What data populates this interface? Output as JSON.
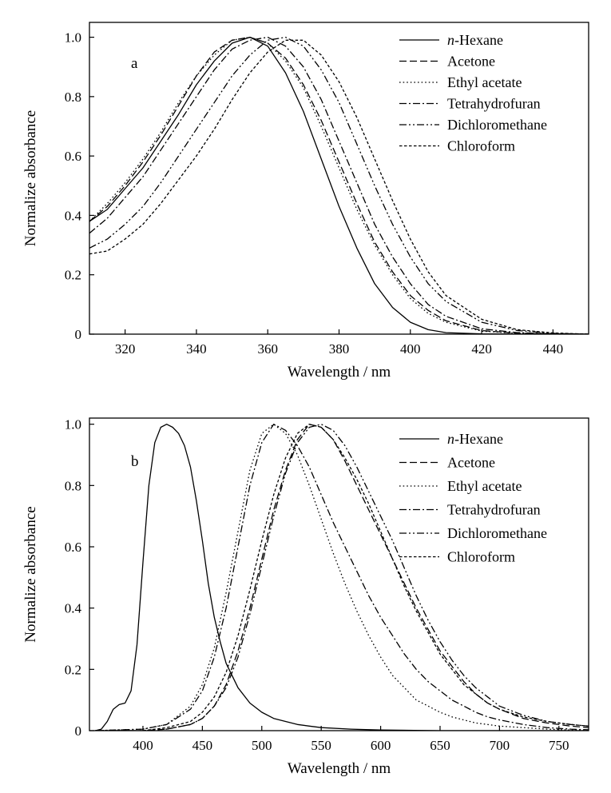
{
  "chart_data": [
    {
      "type": "line",
      "panel_label": "a",
      "xlabel": "Wavelength / nm",
      "ylabel": "Normalize absorbance",
      "xlim": [
        310,
        450
      ],
      "ylim": [
        0,
        1.05
      ],
      "xticks": [
        320,
        340,
        360,
        380,
        400,
        420,
        440
      ],
      "yticks": [
        0,
        0.2,
        0.4,
        0.6,
        0.8,
        1.0
      ],
      "ytick_labels": [
        "0",
        "0.2",
        "0.4",
        "0.6",
        "0.8",
        "1.0"
      ],
      "legend_position": "top-right",
      "series": [
        {
          "name": "n-Hexane",
          "name_italic": "n",
          "name_rest": "-Hexane",
          "dash": "solid",
          "x": [
            310,
            315,
            320,
            325,
            330,
            335,
            340,
            345,
            350,
            355,
            360,
            365,
            370,
            375,
            380,
            385,
            390,
            395,
            400,
            405,
            410,
            420,
            430,
            440,
            450
          ],
          "y": [
            0.38,
            0.42,
            0.49,
            0.56,
            0.65,
            0.74,
            0.84,
            0.92,
            0.98,
            1.0,
            0.97,
            0.88,
            0.75,
            0.59,
            0.43,
            0.29,
            0.17,
            0.09,
            0.04,
            0.015,
            0.005,
            0.001,
            0,
            0,
            0
          ]
        },
        {
          "name": "Acetone",
          "dash": "dashed",
          "x": [
            310,
            315,
            320,
            325,
            330,
            335,
            340,
            345,
            350,
            355,
            360,
            365,
            370,
            375,
            380,
            385,
            390,
            395,
            400,
            405,
            410,
            420,
            430,
            440,
            450
          ],
          "y": [
            0.38,
            0.43,
            0.5,
            0.58,
            0.67,
            0.77,
            0.87,
            0.95,
            0.99,
            1.0,
            0.98,
            0.93,
            0.84,
            0.72,
            0.58,
            0.44,
            0.31,
            0.21,
            0.13,
            0.08,
            0.045,
            0.012,
            0.003,
            0.001,
            0
          ]
        },
        {
          "name": "Ethyl acetate",
          "dash": "dotted",
          "x": [
            310,
            315,
            320,
            325,
            330,
            335,
            340,
            345,
            350,
            355,
            360,
            365,
            370,
            375,
            380,
            385,
            390,
            395,
            400,
            405,
            410,
            420,
            430,
            440,
            450
          ],
          "y": [
            0.38,
            0.44,
            0.51,
            0.59,
            0.68,
            0.78,
            0.87,
            0.94,
            0.99,
            1.0,
            0.98,
            0.92,
            0.83,
            0.7,
            0.56,
            0.42,
            0.3,
            0.2,
            0.12,
            0.07,
            0.04,
            0.01,
            0.003,
            0.001,
            0
          ]
        },
        {
          "name": "Tetrahydrofuran",
          "dash": "dashdot",
          "x": [
            310,
            315,
            320,
            325,
            330,
            335,
            340,
            345,
            350,
            355,
            360,
            365,
            370,
            375,
            380,
            385,
            390,
            395,
            400,
            405,
            410,
            420,
            430,
            440,
            450
          ],
          "y": [
            0.34,
            0.39,
            0.46,
            0.53,
            0.62,
            0.71,
            0.8,
            0.89,
            0.96,
            0.99,
            1.0,
            0.97,
            0.9,
            0.79,
            0.65,
            0.51,
            0.37,
            0.26,
            0.17,
            0.1,
            0.06,
            0.018,
            0.005,
            0.001,
            0
          ]
        },
        {
          "name": "Dichloromethane",
          "dash": "dashdotdot",
          "x": [
            310,
            315,
            320,
            325,
            330,
            335,
            340,
            345,
            350,
            355,
            360,
            365,
            370,
            375,
            380,
            385,
            390,
            395,
            400,
            405,
            410,
            420,
            430,
            440,
            450
          ],
          "y": [
            0.29,
            0.32,
            0.37,
            0.43,
            0.51,
            0.6,
            0.69,
            0.78,
            0.87,
            0.94,
            0.99,
            1.0,
            0.97,
            0.89,
            0.78,
            0.64,
            0.5,
            0.37,
            0.26,
            0.17,
            0.11,
            0.04,
            0.012,
            0.003,
            0
          ]
        },
        {
          "name": "Chloroform",
          "dash": "shortdash",
          "x": [
            310,
            315,
            320,
            325,
            330,
            335,
            340,
            345,
            350,
            355,
            360,
            365,
            370,
            375,
            380,
            385,
            390,
            395,
            400,
            405,
            410,
            420,
            430,
            440,
            450
          ],
          "y": [
            0.27,
            0.28,
            0.32,
            0.37,
            0.44,
            0.52,
            0.6,
            0.69,
            0.79,
            0.88,
            0.95,
            0.99,
            0.99,
            0.94,
            0.85,
            0.73,
            0.59,
            0.45,
            0.32,
            0.21,
            0.13,
            0.05,
            0.015,
            0.004,
            0
          ]
        }
      ]
    },
    {
      "type": "line",
      "panel_label": "b",
      "xlabel": "Wavelength / nm",
      "ylabel": "Normalize absorbance",
      "xlim": [
        355,
        775
      ],
      "ylim": [
        0,
        1.02
      ],
      "xticks": [
        400,
        450,
        500,
        550,
        600,
        650,
        700,
        750
      ],
      "yticks": [
        0,
        0.2,
        0.4,
        0.6,
        0.8,
        1.0
      ],
      "ytick_labels": [
        "0",
        "0.2",
        "0.4",
        "0.6",
        "0.8",
        "1.0"
      ],
      "legend_position": "top-right",
      "series": [
        {
          "name": "n-Hexane",
          "name_italic": "n",
          "name_rest": "-Hexane",
          "dash": "solid",
          "x": [
            360,
            365,
            370,
            375,
            380,
            385,
            390,
            395,
            400,
            405,
            410,
            415,
            420,
            425,
            430,
            435,
            440,
            445,
            450,
            455,
            460,
            465,
            470,
            480,
            490,
            500,
            510,
            520,
            530,
            540,
            550,
            575,
            600,
            650,
            700,
            750,
            775
          ],
          "y": [
            0,
            0.005,
            0.03,
            0.07,
            0.085,
            0.09,
            0.13,
            0.28,
            0.55,
            0.8,
            0.94,
            0.99,
            1.0,
            0.99,
            0.97,
            0.93,
            0.86,
            0.75,
            0.62,
            0.48,
            0.37,
            0.29,
            0.22,
            0.14,
            0.09,
            0.06,
            0.04,
            0.03,
            0.02,
            0.015,
            0.01,
            0.005,
            0.002,
            0,
            0,
            0,
            0
          ]
        },
        {
          "name": "Acetone",
          "dash": "dashed",
          "x": [
            360,
            400,
            420,
            440,
            450,
            460,
            470,
            480,
            490,
            500,
            510,
            520,
            530,
            540,
            550,
            560,
            570,
            580,
            590,
            600,
            610,
            620,
            630,
            640,
            650,
            660,
            670,
            680,
            690,
            700,
            720,
            740,
            760,
            775
          ],
          "y": [
            0,
            0,
            0.005,
            0.02,
            0.04,
            0.08,
            0.15,
            0.26,
            0.4,
            0.56,
            0.72,
            0.85,
            0.95,
            1.0,
            0.99,
            0.95,
            0.88,
            0.8,
            0.72,
            0.64,
            0.56,
            0.48,
            0.4,
            0.33,
            0.26,
            0.21,
            0.16,
            0.12,
            0.09,
            0.07,
            0.04,
            0.025,
            0.015,
            0.01
          ]
        },
        {
          "name": "Ethyl acetate",
          "dash": "dotted",
          "x": [
            360,
            400,
            420,
            440,
            450,
            460,
            470,
            480,
            490,
            500,
            510,
            520,
            530,
            540,
            550,
            560,
            570,
            580,
            590,
            600,
            610,
            620,
            630,
            640,
            650,
            660,
            670,
            680,
            690,
            700,
            720,
            740,
            760,
            775
          ],
          "y": [
            0,
            0.005,
            0.02,
            0.08,
            0.15,
            0.27,
            0.45,
            0.65,
            0.85,
            0.97,
            1.0,
            0.97,
            0.9,
            0.8,
            0.69,
            0.58,
            0.48,
            0.39,
            0.31,
            0.24,
            0.18,
            0.14,
            0.1,
            0.08,
            0.06,
            0.045,
            0.035,
            0.025,
            0.02,
            0.015,
            0.01,
            0.005,
            0.002,
            0
          ]
        },
        {
          "name": "Tetrahydrofuran",
          "dash": "dashdot",
          "x": [
            360,
            400,
            420,
            440,
            450,
            460,
            470,
            480,
            490,
            500,
            510,
            520,
            530,
            540,
            550,
            560,
            570,
            580,
            590,
            600,
            610,
            620,
            630,
            640,
            650,
            660,
            670,
            680,
            690,
            700,
            720,
            740,
            760,
            775
          ],
          "y": [
            0,
            0.005,
            0.02,
            0.07,
            0.13,
            0.24,
            0.4,
            0.6,
            0.8,
            0.94,
            1.0,
            0.98,
            0.93,
            0.86,
            0.77,
            0.68,
            0.6,
            0.52,
            0.44,
            0.37,
            0.31,
            0.25,
            0.2,
            0.16,
            0.13,
            0.1,
            0.08,
            0.06,
            0.045,
            0.035,
            0.02,
            0.01,
            0.005,
            0.003
          ]
        },
        {
          "name": "Dichloromethane",
          "dash": "dashdotdot",
          "x": [
            360,
            400,
            420,
            440,
            450,
            460,
            470,
            480,
            490,
            500,
            510,
            520,
            530,
            540,
            550,
            560,
            570,
            580,
            590,
            600,
            610,
            620,
            630,
            640,
            650,
            660,
            670,
            680,
            690,
            700,
            720,
            740,
            760,
            775
          ],
          "y": [
            0,
            0,
            0.005,
            0.02,
            0.04,
            0.08,
            0.14,
            0.24,
            0.38,
            0.54,
            0.7,
            0.84,
            0.94,
            0.99,
            1.0,
            0.98,
            0.93,
            0.86,
            0.78,
            0.7,
            0.62,
            0.53,
            0.44,
            0.36,
            0.29,
            0.23,
            0.18,
            0.14,
            0.11,
            0.08,
            0.05,
            0.03,
            0.02,
            0.015
          ]
        },
        {
          "name": "Chloroform",
          "dash": "shortdash",
          "x": [
            360,
            400,
            420,
            440,
            450,
            460,
            470,
            480,
            490,
            500,
            510,
            520,
            530,
            540,
            550,
            560,
            570,
            580,
            590,
            600,
            610,
            620,
            630,
            640,
            650,
            660,
            670,
            680,
            690,
            700,
            720,
            740,
            760,
            775
          ],
          "y": [
            0,
            0,
            0.01,
            0.03,
            0.06,
            0.11,
            0.19,
            0.31,
            0.46,
            0.62,
            0.77,
            0.89,
            0.97,
            1.0,
            0.99,
            0.95,
            0.89,
            0.82,
            0.74,
            0.65,
            0.56,
            0.47,
            0.39,
            0.32,
            0.25,
            0.2,
            0.15,
            0.12,
            0.09,
            0.07,
            0.045,
            0.03,
            0.02,
            0.015
          ]
        }
      ]
    }
  ]
}
